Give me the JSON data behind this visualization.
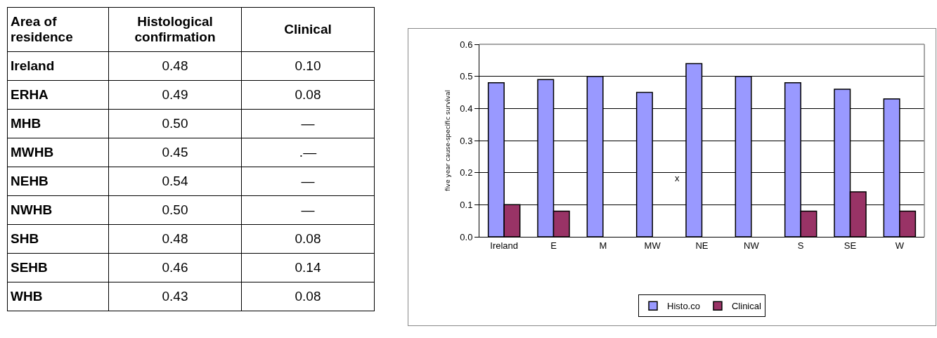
{
  "chart_data": [
    {
      "type": "other",
      "legend_title": "Area of residence",
      "categories": [
        "Ireland",
        "ERHA",
        "MHB",
        "MWHB",
        "NEHB",
        "NWHB",
        "SHB",
        "SEHB",
        "WHB"
      ],
      "series": [
        {
          "name": "Histological confirmation",
          "values": [
            0.48,
            0.49,
            0.5,
            0.45,
            0.54,
            0.5,
            0.48,
            0.46,
            0.43
          ],
          "value_labels": [
            "0.48",
            "0.49",
            "0.50",
            "0.45",
            "0.54",
            "0.50",
            "0.48",
            "0.46",
            "0.43"
          ]
        },
        {
          "name": "Clinical",
          "values": [
            0.1,
            0.08,
            null,
            null,
            null,
            null,
            0.08,
            0.14,
            0.08
          ],
          "value_labels": [
            "0.10",
            "0.08",
            "—",
            ".—",
            "—",
            "—",
            "0.08",
            "0.14",
            "0.08"
          ]
        }
      ]
    },
    {
      "type": "bar",
      "ylabel": "five year cause-specific survival",
      "categories": [
        "Ireland",
        "E",
        "M",
        "MW",
        "NE",
        "NW",
        "S",
        "SE",
        "W"
      ],
      "series": [
        {
          "name": "Histo.co",
          "color": "#9999ff",
          "values": [
            0.48,
            0.49,
            0.5,
            0.45,
            0.54,
            0.5,
            0.48,
            0.46,
            0.43
          ]
        },
        {
          "name": "Clinical",
          "color": "#993366",
          "values": [
            0.1,
            0.08,
            null,
            null,
            null,
            null,
            0.08,
            0.14,
            0.08
          ]
        }
      ],
      "ylim": [
        0,
        0.6
      ],
      "yticks": [
        {
          "value": 0,
          "label": "0.0"
        },
        0.1,
        0.2,
        0.3,
        0.4,
        0.5,
        0.6
      ],
      "grid": "y",
      "legend": "bottom",
      "annotations": [
        "x"
      ]
    }
  ]
}
